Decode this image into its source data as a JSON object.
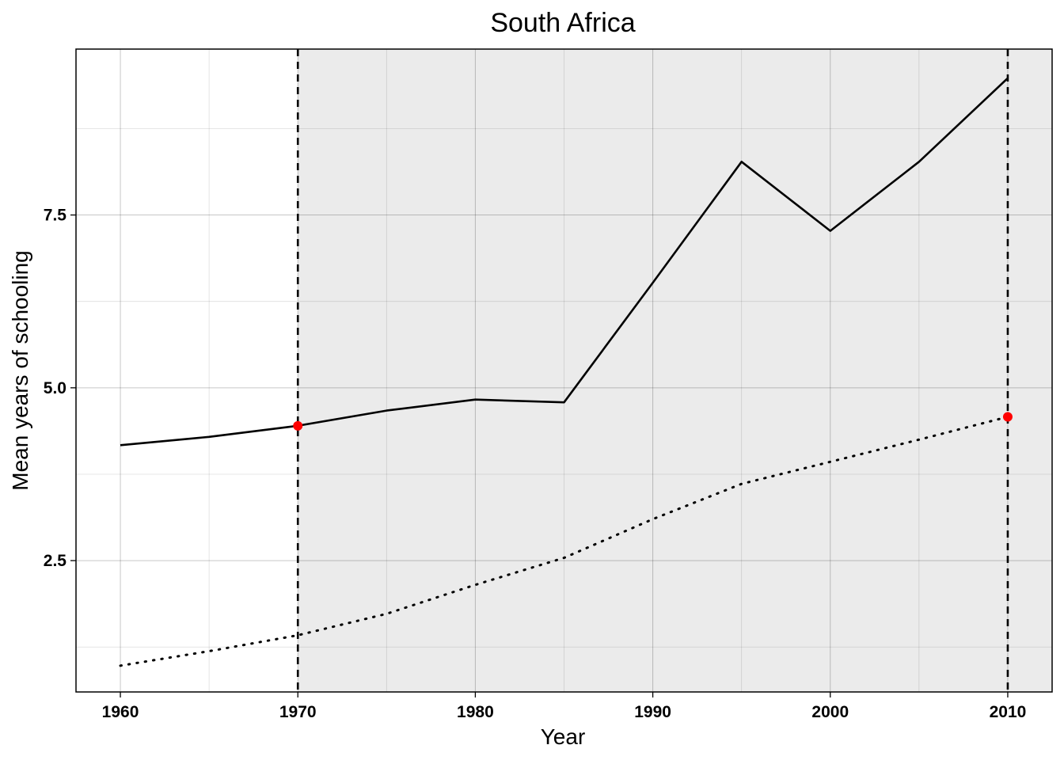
{
  "chart_data": {
    "type": "line",
    "title": "South Africa",
    "xlabel": "Year",
    "ylabel": "Mean years of schooling",
    "xlim": [
      1957.5,
      2012.5
    ],
    "ylim": [
      0.6,
      9.9
    ],
    "x_ticks": [
      1960,
      1970,
      1980,
      1990,
      2000,
      2010
    ],
    "x_tick_labels": [
      "1960",
      "1970",
      "1980",
      "1990",
      "2000",
      "2010"
    ],
    "x_minor_ticks": [
      1965,
      1975,
      1985,
      1995,
      2005
    ],
    "y_ticks": [
      2.5,
      5.0,
      7.5
    ],
    "y_tick_labels": [
      "2.5",
      "5.0",
      "7.5"
    ],
    "y_minor_ticks": [
      1.25,
      3.75,
      6.25,
      8.75
    ],
    "grid": true,
    "shaded_period": [
      1970,
      2010
    ],
    "vertical_lines": [
      1970,
      2010
    ],
    "series": [
      {
        "style": "solid",
        "x": [
          1960,
          1965,
          1970,
          1975,
          1980,
          1985,
          1990,
          1995,
          2000,
          2005,
          2010
        ],
        "values": [
          4.17,
          4.29,
          4.45,
          4.67,
          4.83,
          4.79,
          6.52,
          8.27,
          7.27,
          8.27,
          9.48
        ]
      },
      {
        "style": "dotted",
        "x": [
          1960,
          1965,
          1970,
          1975,
          1980,
          1985,
          1990,
          1995,
          2000,
          2005,
          2010
        ],
        "values": [
          0.98,
          1.19,
          1.42,
          1.73,
          2.15,
          2.54,
          3.1,
          3.61,
          3.93,
          4.25,
          4.58
        ]
      }
    ],
    "highlight_points": [
      {
        "x": 1970,
        "y": 4.45
      },
      {
        "x": 2010,
        "y": 4.58
      }
    ],
    "colors": {
      "line": "#000000",
      "highlight": "#ff0000",
      "shade": "#ebebeb",
      "grid": "#c8c8c8"
    }
  }
}
